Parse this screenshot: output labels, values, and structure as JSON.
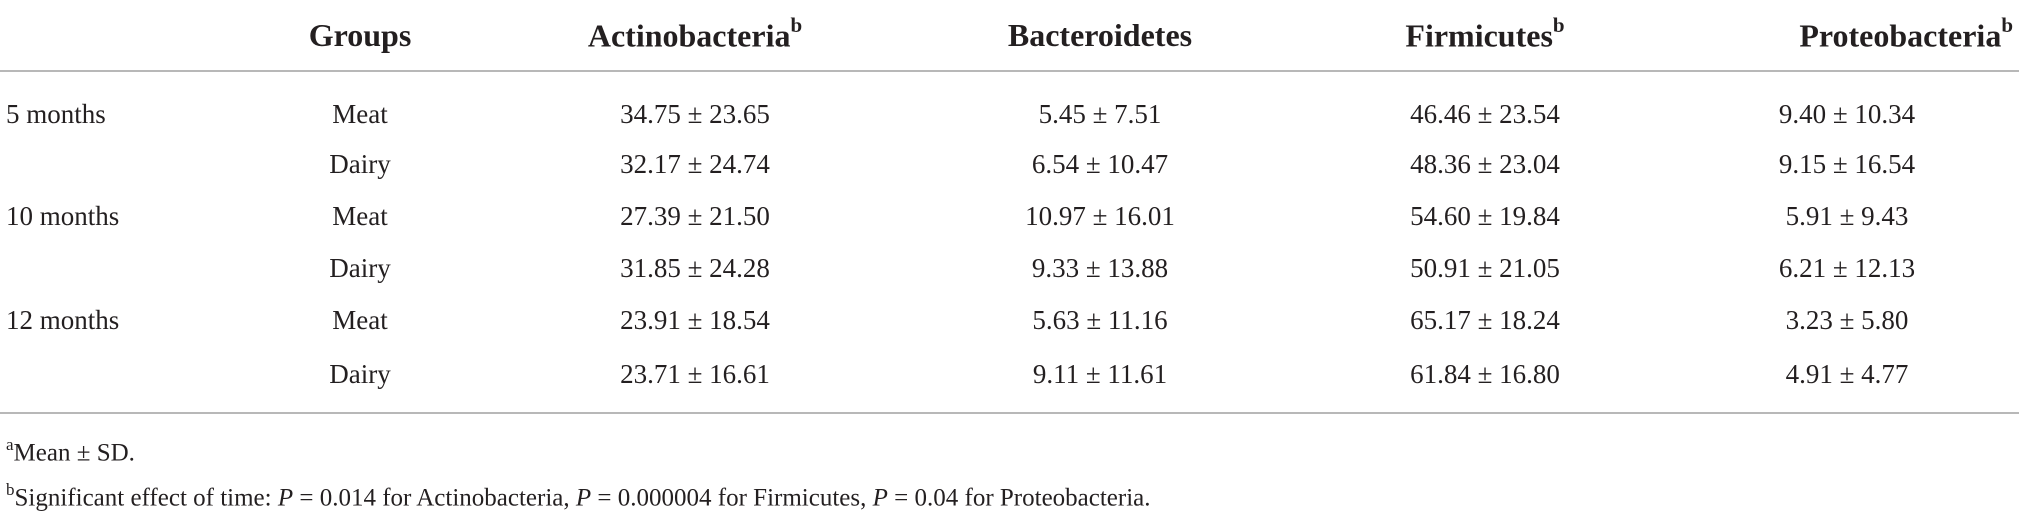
{
  "table": {
    "headers": {
      "age": "",
      "groups": "Groups",
      "actino": "Actinobacteria",
      "actino_mark": "b",
      "bacter": "Bacteroidetes",
      "firm": "Firmicutes",
      "firm_mark": "b",
      "proteo": "Proteobacteria",
      "proteo_mark": "b"
    },
    "rows": [
      {
        "age": "5 months",
        "group": "Meat",
        "actino": "34.75 ± 23.65",
        "bacter": "5.45 ± 7.51",
        "firm": "46.46 ± 23.54",
        "proteo": "9.40 ± 10.34"
      },
      {
        "age": "",
        "group": "Dairy",
        "actino": "32.17 ± 24.74",
        "bacter": "6.54 ± 10.47",
        "firm": "48.36 ± 23.04",
        "proteo": "9.15 ± 16.54"
      },
      {
        "age": "10 months",
        "group": "Meat",
        "actino": "27.39 ± 21.50",
        "bacter": "10.97 ± 16.01",
        "firm": "54.60 ± 19.84",
        "proteo": "5.91 ± 9.43"
      },
      {
        "age": "",
        "group": "Dairy",
        "actino": "31.85 ± 24.28",
        "bacter": "9.33 ± 13.88",
        "firm": "50.91 ± 21.05",
        "proteo": "6.21 ± 12.13"
      },
      {
        "age": "12 months",
        "group": "Meat",
        "actino": "23.91 ± 18.54",
        "bacter": "5.63 ± 11.16",
        "firm": "65.17 ± 18.24",
        "proteo": "3.23 ± 5.80"
      },
      {
        "age": "",
        "group": "Dairy",
        "actino": "23.71 ± 16.61",
        "bacter": "9.11 ± 11.61",
        "firm": "61.84 ± 16.80",
        "proteo": "4.91 ± 4.77"
      }
    ]
  },
  "notes": {
    "a_mark": "a",
    "a_text": "Mean ± SD.",
    "b_mark": "b",
    "b_lead": "Significant effect of time: ",
    "b_p1_sym": "P",
    "b_p1_rest": " = 0.014 for Actinobacteria, ",
    "b_p2_sym": "P",
    "b_p2_rest": " = 0.000004 for Firmicutes, ",
    "b_p3_sym": "P",
    "b_p3_rest": " = 0.04 for Proteobacteria."
  }
}
